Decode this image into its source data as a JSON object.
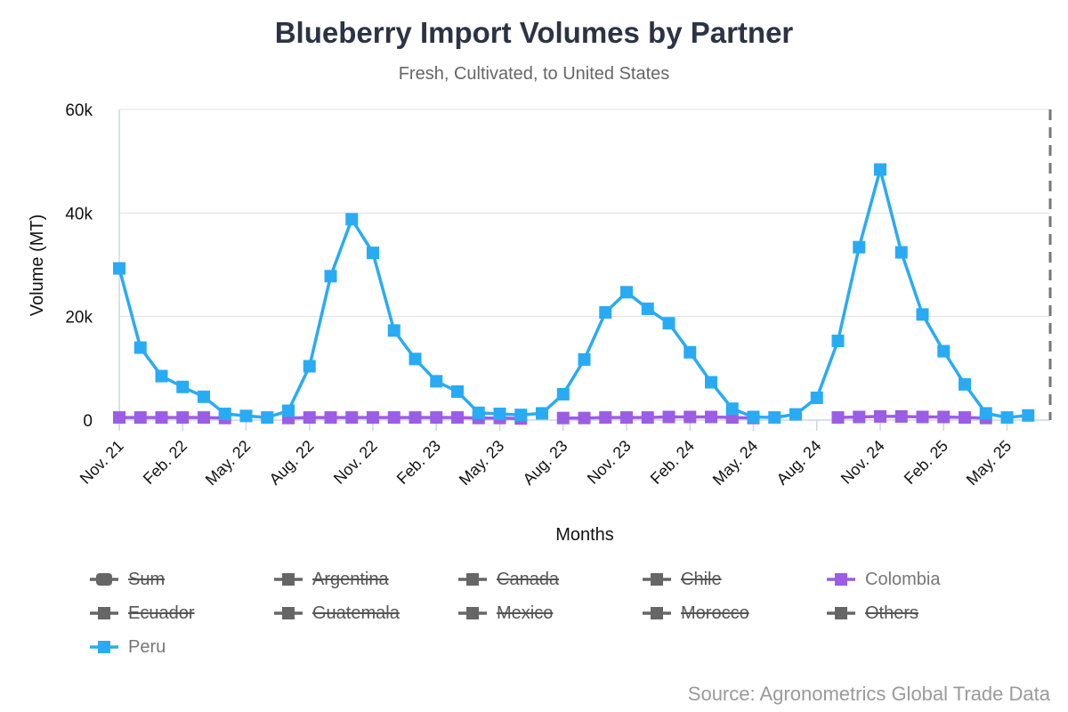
{
  "header": {
    "title": "Blueberry Import Volumes by Partner",
    "subtitle": "Fresh, Cultivated, to United States"
  },
  "footer": {
    "source": "Source: Agronometrics Global Trade Data"
  },
  "colors": {
    "peru": "#29abf4",
    "colombia": "#9b5de5",
    "hidden": "#666666",
    "grid": "#e0e0e0",
    "axis": "#ccd6eb"
  },
  "legend": [
    {
      "label": "Sum",
      "state": "hidden",
      "icon": "rounded-square-marker"
    },
    {
      "label": "Argentina",
      "state": "hidden",
      "icon": "square-marker"
    },
    {
      "label": "Canada",
      "state": "hidden",
      "icon": "square-marker"
    },
    {
      "label": "Chile",
      "state": "hidden",
      "icon": "square-marker"
    },
    {
      "label": "Colombia",
      "state": "visible",
      "icon": "square-marker"
    },
    {
      "label": "Ecuador",
      "state": "hidden",
      "icon": "square-marker"
    },
    {
      "label": "Guatemala",
      "state": "hidden",
      "icon": "square-marker"
    },
    {
      "label": "Mexico",
      "state": "hidden",
      "icon": "square-marker"
    },
    {
      "label": "Morocco",
      "state": "hidden",
      "icon": "square-marker"
    },
    {
      "label": "Others",
      "state": "hidden",
      "icon": "square-marker"
    },
    {
      "label": "Peru",
      "state": "visible",
      "icon": "square-marker"
    }
  ],
  "chart_data": {
    "type": "line",
    "xlabel": "Months",
    "ylabel": "Volume (MT)",
    "ylim": [
      0,
      60000
    ],
    "yticks": [
      0,
      20000,
      40000,
      60000
    ],
    "ytick_labels": [
      "0",
      "20k",
      "40k",
      "60k"
    ],
    "xtick_labels": [
      "Nov. 21",
      "Feb. 22",
      "May. 22",
      "Aug. 22",
      "Nov. 22",
      "Feb. 23",
      "May. 23",
      "Aug. 23",
      "Nov. 23",
      "Feb. 24",
      "May. 24",
      "Aug. 24",
      "Nov. 24",
      "Feb. 25",
      "May. 25"
    ],
    "grid": true,
    "legend_position": "bottom",
    "x": [
      "Nov. 21",
      "Dec. 21",
      "Jan. 22",
      "Feb. 22",
      "Mar. 22",
      "Apr. 22",
      "May. 22",
      "Jun. 22",
      "Jul. 22",
      "Aug. 22",
      "Sep. 22",
      "Oct. 22",
      "Nov. 22",
      "Dec. 22",
      "Jan. 23",
      "Feb. 23",
      "Mar. 23",
      "Apr. 23",
      "May. 23",
      "Jun. 23",
      "Jul. 23",
      "Aug. 23",
      "Sep. 23",
      "Oct. 23",
      "Nov. 23",
      "Dec. 23",
      "Jan. 24",
      "Feb. 24",
      "Mar. 24",
      "Apr. 24",
      "May. 24",
      "Jun. 24",
      "Jul. 24",
      "Aug. 24",
      "Sep. 24",
      "Oct. 24",
      "Nov. 24",
      "Dec. 24",
      "Jan. 25",
      "Feb. 25",
      "Mar. 25",
      "Apr. 25",
      "May. 25",
      "Jun. 25"
    ],
    "series": [
      {
        "name": "Peru",
        "color": "#29abf4",
        "values": [
          29300,
          14000,
          8500,
          6400,
          4500,
          1200,
          800,
          500,
          1800,
          10400,
          27800,
          38800,
          32300,
          17300,
          11800,
          7500,
          5500,
          1400,
          1200,
          1000,
          1300,
          5000,
          11700,
          20800,
          24700,
          21500,
          18700,
          13100,
          7300,
          2200,
          600,
          500,
          1100,
          4300,
          15300,
          33400,
          48400,
          32400,
          20400,
          13300,
          6900,
          1300,
          500,
          900
        ]
      },
      {
        "name": "Colombia",
        "color": "#9b5de5",
        "values": [
          500,
          500,
          500,
          500,
          500,
          400,
          null,
          null,
          400,
          500,
          500,
          500,
          500,
          500,
          500,
          500,
          500,
          400,
          400,
          300,
          null,
          400,
          400,
          500,
          500,
          500,
          600,
          600,
          600,
          500,
          400,
          null,
          null,
          null,
          500,
          600,
          700,
          700,
          600,
          600,
          500,
          400,
          null,
          null
        ]
      }
    ]
  }
}
